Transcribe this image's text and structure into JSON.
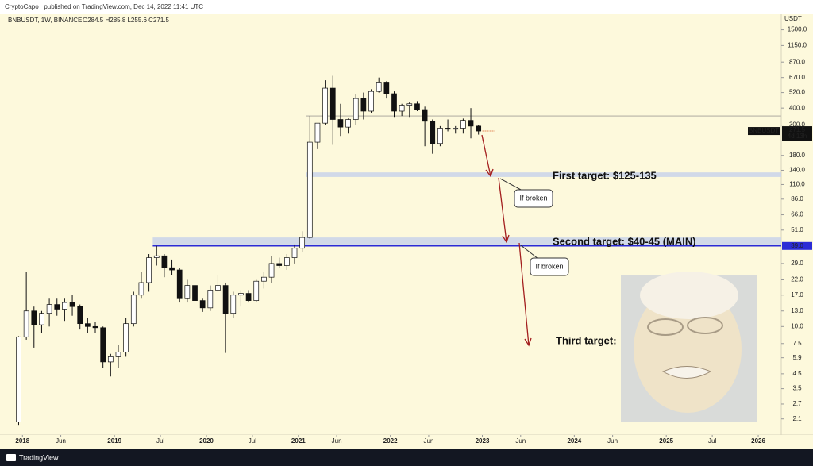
{
  "header": "CryptoCapo_ published on TradingView.com, Dec 14, 2022 11:41 UTC",
  "footer": "TradingView",
  "chart_data": {
    "type": "candlestick",
    "title": "BNBUSDT, 1W, BINANCE",
    "subtitle": "O284.5 H285.8 L255.6 C271.5",
    "y_unit": "USDT",
    "log_scale": true,
    "up_color": "#ffffff",
    "down_color": "#111111",
    "wick_color": "#111111",
    "x": [
      "2017-12",
      "2018-01",
      "2018-02",
      "2018-03",
      "2018-04",
      "2018-05",
      "2018-06",
      "2018-07",
      "2018-08",
      "2018-09",
      "2018-10",
      "2018-11",
      "2018-12",
      "2019-01",
      "2019-02",
      "2019-03",
      "2019-04",
      "2019-05",
      "2019-06",
      "2019-07",
      "2019-08",
      "2019-09",
      "2019-10",
      "2019-11",
      "2019-12",
      "2020-01",
      "2020-02",
      "2020-03",
      "2020-04",
      "2020-05",
      "2020-06",
      "2020-07",
      "2020-08",
      "2020-09",
      "2020-10",
      "2020-11",
      "2020-12",
      "2021-01",
      "2021-02",
      "2021-03",
      "2021-04",
      "2021-05",
      "2021-06",
      "2021-07",
      "2021-08",
      "2021-09",
      "2021-10",
      "2021-11",
      "2021-12",
      "2022-01",
      "2022-02",
      "2022-03",
      "2022-04",
      "2022-05",
      "2022-06",
      "2022-07",
      "2022-08",
      "2022-09",
      "2022-10",
      "2022-11",
      "2022-12"
    ],
    "open": [
      2,
      8.4,
      13,
      10.3,
      12.5,
      14.5,
      13.4,
      15,
      14,
      10.5,
      10,
      9.8,
      5.5,
      6,
      6.5,
      10.5,
      17,
      21,
      32,
      33,
      27,
      26,
      16,
      20,
      15.5,
      13.7,
      18.5,
      20,
      12.5,
      17,
      17.5,
      15.5,
      21.5,
      23,
      29,
      28,
      32,
      37.5,
      45,
      225,
      310,
      560,
      330,
      290,
      330,
      470,
      380,
      530,
      620,
      510,
      380,
      420,
      430,
      390,
      320,
      220,
      285,
      280,
      285,
      325,
      295
    ],
    "high": [
      8.5,
      25,
      14,
      13,
      16,
      16,
      16,
      17,
      14.5,
      11.5,
      10.8,
      10,
      6.3,
      7.3,
      11.5,
      18,
      25,
      34,
      39,
      34,
      31,
      27,
      22,
      21,
      16,
      20,
      24,
      21,
      18,
      18.5,
      18.5,
      22,
      25,
      33,
      32,
      34,
      40,
      50,
      350,
      310,
      640,
      690,
      430,
      335,
      505,
      520,
      550,
      670,
      630,
      530,
      430,
      445,
      450,
      410,
      330,
      295,
      330,
      295,
      335,
      400,
      300
    ],
    "low": [
      1.9,
      8,
      7,
      9,
      10,
      12,
      11,
      12,
      9.5,
      9,
      9,
      5,
      4.3,
      5,
      6,
      10,
      16,
      18,
      28,
      23,
      24,
      15,
      15,
      14,
      12.8,
      13,
      18,
      6.4,
      11.5,
      14,
      15,
      15,
      19,
      21,
      27,
      26,
      29,
      35,
      44,
      200,
      300,
      215,
      250,
      260,
      300,
      330,
      370,
      520,
      470,
      340,
      350,
      340,
      380,
      210,
      185,
      210,
      270,
      260,
      260,
      240,
      255.6
    ],
    "close": [
      8.4,
      13,
      10.3,
      12.5,
      14.5,
      13.4,
      15,
      14,
      10.5,
      10,
      9.8,
      5.5,
      6,
      6.5,
      10.5,
      17,
      21,
      32,
      33,
      27,
      26,
      16,
      20,
      15.5,
      13.7,
      18.5,
      20,
      12.5,
      17,
      17.5,
      15.5,
      21.5,
      23,
      29,
      28,
      32,
      37.5,
      45,
      225,
      310,
      560,
      330,
      290,
      330,
      470,
      380,
      530,
      620,
      510,
      380,
      420,
      430,
      390,
      320,
      220,
      285,
      280,
      285,
      325,
      295,
      271.5
    ],
    "xlim": [
      "2017-11",
      "2026-04"
    ],
    "ylim": [
      1.6,
      1950
    ],
    "xticks": [
      {
        "value": "2018-01",
        "label": "2018"
      },
      {
        "value": "2018-06",
        "label": "Jun"
      },
      {
        "value": "2019-01",
        "label": "2019"
      },
      {
        "value": "2019-07",
        "label": "Jul"
      },
      {
        "value": "2020-01",
        "label": "2020"
      },
      {
        "value": "2020-07",
        "label": "Jul"
      },
      {
        "value": "2021-01",
        "label": "2021"
      },
      {
        "value": "2021-06",
        "label": "Jun"
      },
      {
        "value": "2022-01",
        "label": "2022"
      },
      {
        "value": "2022-06",
        "label": "Jun"
      },
      {
        "value": "2023-01",
        "label": "2023"
      },
      {
        "value": "2023-06",
        "label": "Jun"
      },
      {
        "value": "2024-01",
        "label": "2024"
      },
      {
        "value": "2024-06",
        "label": "Jun"
      },
      {
        "value": "2025-01",
        "label": "2025"
      },
      {
        "value": "2025-07",
        "label": "Jul"
      },
      {
        "value": "2026-01",
        "label": "2026"
      }
    ],
    "yticks": [
      {
        "value": 1500,
        "label": "1500.0"
      },
      {
        "value": 1150,
        "label": "1150.0"
      },
      {
        "value": 870,
        "label": "870.0"
      },
      {
        "value": 670,
        "label": "670.0"
      },
      {
        "value": 520,
        "label": "520.0"
      },
      {
        "value": 400,
        "label": "400.0"
      },
      {
        "value": 300,
        "label": "300.0"
      },
      {
        "value": 180,
        "label": "180.0"
      },
      {
        "value": 140,
        "label": "140.0"
      },
      {
        "value": 110,
        "label": "110.0"
      },
      {
        "value": 86,
        "label": "86.0"
      },
      {
        "value": 66,
        "label": "66.0"
      },
      {
        "value": 51,
        "label": "51.0"
      },
      {
        "value": 29,
        "label": "29.0"
      },
      {
        "value": 22,
        "label": "22.0"
      },
      {
        "value": 17,
        "label": "17.0"
      },
      {
        "value": 13,
        "label": "13.0"
      },
      {
        "value": 10,
        "label": "10.0"
      },
      7.5,
      5.9,
      4.5,
      3.5,
      2.7,
      2.1
    ],
    "bands": [
      {
        "low": 125,
        "high": 135,
        "start": "2021-02",
        "color": "#c9d3ea"
      },
      {
        "low": 40,
        "high": 45,
        "start": "2019-06",
        "color": "#c9d3ea"
      }
    ],
    "lines": [
      {
        "value": 350,
        "start": "2021-02",
        "color": "#c8c4b4"
      },
      {
        "value": 39,
        "start": "2019-06",
        "color": "#2b2bd6",
        "label": "39.0"
      }
    ],
    "price_label": {
      "symbol": "BNBUSDT",
      "value": 271.5,
      "countdown": "4d 13h"
    },
    "annotations": [
      "First target: $125-135",
      "Second target: $40-45 (MAIN)",
      "Third target:",
      "If broken",
      "If broken"
    ]
  }
}
